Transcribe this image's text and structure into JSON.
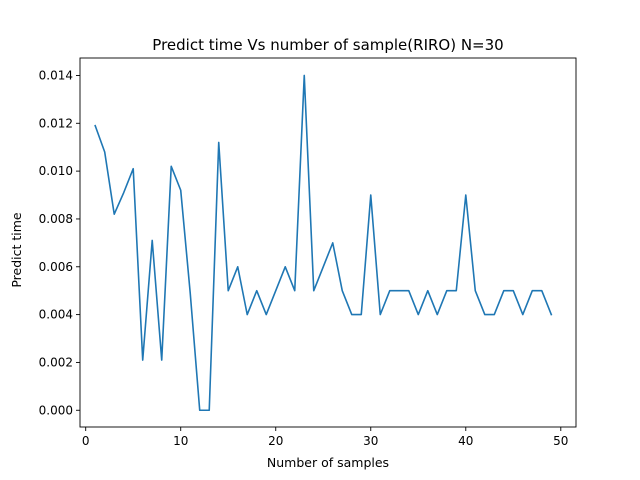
{
  "chart_data": {
    "type": "line",
    "title": "Predict time Vs number of sample(RIRO) N=30",
    "xlabel": "Number of samples",
    "ylabel": "Predict time",
    "xlim": [
      -0.6,
      51.6
    ],
    "ylim": [
      -0.0007,
      0.01473
    ],
    "xticks": [
      0,
      10,
      20,
      30,
      40,
      50
    ],
    "yticks": [
      0.0,
      0.002,
      0.004,
      0.006,
      0.008,
      0.01,
      0.012,
      0.014
    ],
    "ytick_labels": [
      "0.000",
      "0.002",
      "0.004",
      "0.006",
      "0.008",
      "0.010",
      "0.012",
      "0.014"
    ],
    "grid": false,
    "series": [
      {
        "color": "#1f77b4",
        "x": [
          1,
          2,
          3,
          4,
          5,
          6,
          7,
          8,
          9,
          10,
          11,
          12,
          13,
          14,
          15,
          16,
          17,
          18,
          19,
          20,
          21,
          22,
          23,
          24,
          25,
          26,
          27,
          28,
          29,
          30,
          31,
          32,
          33,
          34,
          35,
          36,
          37,
          38,
          39,
          40,
          41,
          42,
          43,
          44,
          45,
          46,
          47,
          48,
          49
        ],
        "y": [
          0.0119,
          0.0108,
          0.0082,
          0.0091,
          0.0101,
          0.0021,
          0.0071,
          0.0021,
          0.0102,
          0.0092,
          0.0049,
          0.0,
          0.0,
          0.0112,
          0.005,
          0.006,
          0.004,
          0.005,
          0.004,
          0.005,
          0.006,
          0.005,
          0.014,
          0.005,
          0.006,
          0.007,
          0.005,
          0.004,
          0.004,
          0.009,
          0.004,
          0.005,
          0.005,
          0.005,
          0.004,
          0.005,
          0.004,
          0.005,
          0.005,
          0.009,
          0.005,
          0.004,
          0.004,
          0.005,
          0.005,
          0.004,
          0.005,
          0.005,
          0.004
        ]
      }
    ]
  }
}
